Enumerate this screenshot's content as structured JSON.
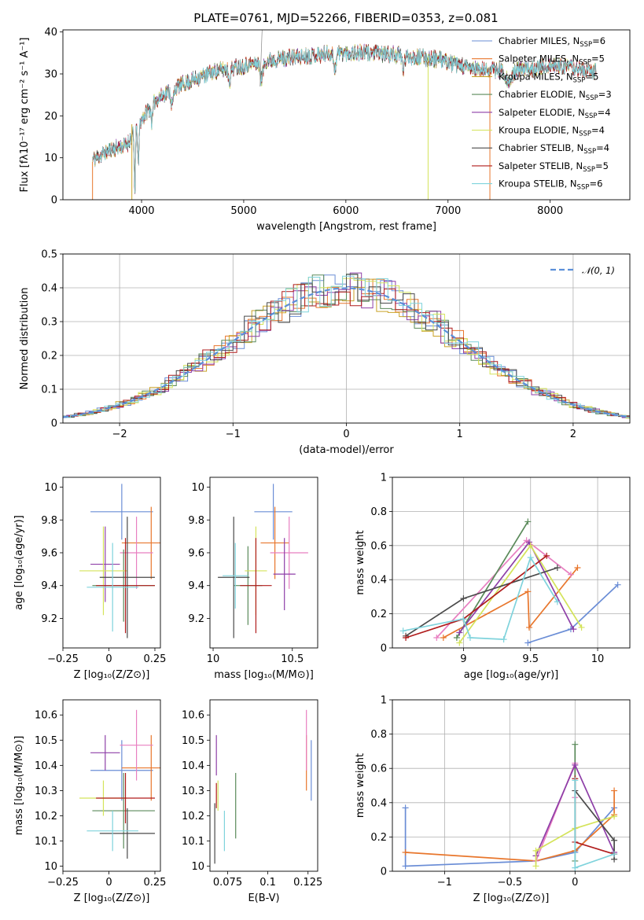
{
  "figure": {
    "title": "PLATE=0761, MJD=52266, FIBERID=0353, z=0.081"
  },
  "chart_data": [
    {
      "id": "spectrum",
      "type": "line",
      "xlabel": "wavelength [Angstrom, rest frame]",
      "ylabel": "Flux [fλ10⁻¹⁷ erg cm⁻² s⁻¹ A⁻¹]",
      "xlim": [
        3230,
        8780
      ],
      "ylim": [
        0,
        40.5
      ],
      "xticks": [
        4000,
        5000,
        6000,
        7000,
        8000
      ],
      "yticks": [
        0,
        10,
        20,
        30,
        40
      ],
      "grid": false,
      "legend_position": "top-right",
      "continuum_knots": {
        "x": [
          3520,
          3700,
          3850,
          3950,
          4050,
          4150,
          4300,
          4500,
          4700,
          4900,
          5100,
          5300,
          5500,
          5700,
          5900,
          6100,
          6300,
          6500,
          6700,
          6900,
          7100,
          7300,
          7500,
          7700,
          7900,
          8100,
          8300,
          8450
        ],
        "y": [
          9.5,
          12,
          13,
          17,
          21,
          24,
          26.5,
          28.5,
          30.5,
          31.5,
          32.5,
          33.5,
          34,
          34.5,
          35,
          35,
          35,
          34.5,
          34,
          33.5,
          32,
          31,
          31,
          31,
          31.5,
          32,
          31,
          30.5
        ]
      },
      "series": [
        {
          "name": "Chabrier MILES, N",
          "sub": "SSP",
          "suffix": "=6",
          "color": "#6a8dd6"
        },
        {
          "name": "Salpeter MILES, N",
          "sub": "SSP",
          "suffix": "=5",
          "color": "#e8762c"
        },
        {
          "name": "Kroupa MILES, N",
          "sub": "SSP",
          "suffix": "=5",
          "color": "#c9a227"
        },
        {
          "name": "Chabrier ELODIE, N",
          "sub": "SSP",
          "suffix": "=3",
          "color": "#5a8a5a"
        },
        {
          "name": "Salpeter ELODIE, N",
          "sub": "SSP",
          "suffix": "=4",
          "color": "#8e3fa8"
        },
        {
          "name": "Kroupa ELODIE, N",
          "sub": "SSP",
          "suffix": "=4",
          "color": "#d4e35a"
        },
        {
          "name": "Chabrier STELIB, N",
          "sub": "SSP",
          "suffix": "=4",
          "color": "#4a4a4a"
        },
        {
          "name": "Salpeter STELIB, N",
          "sub": "SSP",
          "suffix": "=5",
          "color": "#b01c1c"
        },
        {
          "name": "Kroupa STELIB, N",
          "sub": "SSP",
          "suffix": "=6",
          "color": "#7fd3dc"
        }
      ]
    },
    {
      "id": "residuals",
      "type": "histogram",
      "xlabel": "(data-model)/error",
      "ylabel": "Normed distribution",
      "xlim": [
        -2.5,
        2.5
      ],
      "ylim": [
        0,
        0.5
      ],
      "xticks": [
        -2,
        -1,
        0,
        1,
        2
      ],
      "yticks": [
        0.0,
        0.1,
        0.2,
        0.3,
        0.4,
        0.5
      ],
      "grid": true,
      "legend_position": "top-right",
      "reference_curve": {
        "name": "𝒩(0, 1)",
        "mean": 0,
        "sigma": 1,
        "color": "#5b8fd9"
      }
    },
    {
      "id": "age_vs_Z",
      "type": "scatter-errorbar",
      "xlabel": "Z [log₁₀(Z/Z⊙)]",
      "ylabel": "age  [log₁₀(age/yr)]",
      "xlim": [
        -0.25,
        0.28
      ],
      "ylim": [
        9.02,
        10.06
      ],
      "xticks": [
        -0.25,
        0.0,
        0.25
      ],
      "yticks": [
        9.2,
        9.4,
        9.6,
        9.8,
        10.0
      ],
      "points": [
        {
          "x": 0.07,
          "y": 9.85,
          "xerr": 0.17,
          "yerr": 0.17,
          "color": "#6a8dd6"
        },
        {
          "x": 0.23,
          "y": 9.66,
          "xerr": 0.16,
          "yerr": 0.22,
          "color": "#e8762c"
        },
        {
          "x": 0.15,
          "y": 9.6,
          "xerr": 0.09,
          "yerr": 0.22,
          "color": "#e87fc1"
        },
        {
          "x": 0.08,
          "y": 9.4,
          "xerr": 0.17,
          "yerr": 0.22,
          "color": "#5a8a5a"
        },
        {
          "x": -0.02,
          "y": 9.53,
          "xerr": 0.08,
          "yerr": 0.23,
          "color": "#8e3fa8"
        },
        {
          "x": -0.03,
          "y": 9.49,
          "xerr": 0.13,
          "yerr": 0.27,
          "color": "#d4e35a"
        },
        {
          "x": 0.1,
          "y": 9.45,
          "xerr": 0.15,
          "yerr": 0.37,
          "color": "#4a4a4a"
        },
        {
          "x": 0.09,
          "y": 9.4,
          "xerr": 0.16,
          "yerr": 0.29,
          "color": "#b01c1c"
        },
        {
          "x": 0.02,
          "y": 9.39,
          "xerr": 0.14,
          "yerr": 0.27,
          "color": "#7fd3dc"
        }
      ]
    },
    {
      "id": "age_vs_mass",
      "type": "scatter-errorbar",
      "xlabel": "mass [log₁₀(M/M⊙)]",
      "ylabel": "",
      "xlim": [
        9.98,
        10.66
      ],
      "ylim": [
        9.02,
        10.06
      ],
      "xticks": [
        10.0,
        10.5
      ],
      "yticks": [
        9.2,
        9.4,
        9.6,
        9.8,
        10.0
      ],
      "points": [
        {
          "x": 10.38,
          "y": 9.85,
          "xerr": 0.12,
          "yerr": 0.17,
          "color": "#6a8dd6"
        },
        {
          "x": 10.39,
          "y": 9.66,
          "xerr": 0.09,
          "yerr": 0.22,
          "color": "#e8762c"
        },
        {
          "x": 10.48,
          "y": 9.6,
          "xerr": 0.12,
          "yerr": 0.22,
          "color": "#e87fc1"
        },
        {
          "x": 10.22,
          "y": 9.4,
          "xerr": 0.09,
          "yerr": 0.24,
          "color": "#5a8a5a"
        },
        {
          "x": 10.45,
          "y": 9.47,
          "xerr": 0.07,
          "yerr": 0.22,
          "color": "#8e3fa8"
        },
        {
          "x": 10.27,
          "y": 9.49,
          "xerr": 0.07,
          "yerr": 0.27,
          "color": "#d4e35a"
        },
        {
          "x": 10.13,
          "y": 9.45,
          "xerr": 0.1,
          "yerr": 0.37,
          "color": "#4a4a4a"
        },
        {
          "x": 10.27,
          "y": 9.4,
          "xerr": 0.1,
          "yerr": 0.29,
          "color": "#b01c1c"
        },
        {
          "x": 10.14,
          "y": 9.46,
          "xerr": 0.08,
          "yerr": 0.2,
          "color": "#7fd3dc"
        }
      ]
    },
    {
      "id": "weight_vs_age",
      "type": "line",
      "xlabel": "age  [log₁₀(age/yr)]",
      "ylabel": "mass weight",
      "xlim": [
        8.47,
        10.24
      ],
      "ylim": [
        0,
        1.0
      ],
      "xticks": [
        9.0,
        9.5,
        10.0
      ],
      "yticks": [
        0.0,
        0.2,
        0.4,
        0.6,
        0.8,
        1.0
      ],
      "grid": true,
      "series": [
        {
          "color": "#6a8dd6",
          "points": [
            [
              9.48,
              0.03
            ],
            [
              9.8,
              0.11
            ],
            [
              10.15,
              0.37
            ]
          ]
        },
        {
          "color": "#e8762c",
          "points": [
            [
              8.85,
              0.06
            ],
            [
              9.48,
              0.33
            ],
            [
              9.49,
              0.12
            ],
            [
              9.85,
              0.47
            ]
          ]
        },
        {
          "color": "#e87fc1",
          "points": [
            [
              8.8,
              0.06
            ],
            [
              9.47,
              0.63
            ],
            [
              9.8,
              0.43
            ]
          ]
        },
        {
          "color": "#5a8a5a",
          "points": [
            [
              8.95,
              0.06
            ],
            [
              9.48,
              0.74
            ]
          ]
        },
        {
          "color": "#8e3fa8",
          "points": [
            [
              8.97,
              0.09
            ],
            [
              9.49,
              0.62
            ],
            [
              9.82,
              0.11
            ]
          ]
        },
        {
          "color": "#d4e35a",
          "points": [
            [
              8.97,
              0.03
            ],
            [
              9.5,
              0.6
            ],
            [
              9.88,
              0.12
            ]
          ]
        },
        {
          "color": "#4a4a4a",
          "points": [
            [
              8.57,
              0.07
            ],
            [
              9.0,
              0.29
            ],
            [
              9.7,
              0.47
            ]
          ]
        },
        {
          "color": "#b01c1c",
          "points": [
            [
              8.57,
              0.06
            ],
            [
              9.0,
              0.17
            ],
            [
              9.62,
              0.54
            ]
          ]
        },
        {
          "color": "#7fd3dc",
          "points": [
            [
              8.55,
              0.1
            ],
            [
              9.0,
              0.17
            ],
            [
              9.05,
              0.06
            ],
            [
              9.3,
              0.05
            ],
            [
              9.5,
              0.53
            ],
            [
              9.7,
              0.27
            ]
          ]
        }
      ]
    },
    {
      "id": "mass_vs_Z",
      "type": "scatter-errorbar",
      "xlabel": "Z [log₁₀(Z/Z⊙)]",
      "ylabel": "mass [log₁₀(M/M⊙)]",
      "xlim": [
        -0.25,
        0.28
      ],
      "ylim": [
        9.98,
        10.66
      ],
      "xticks": [
        -0.25,
        0.0,
        0.25
      ],
      "yticks": [
        10.0,
        10.1,
        10.2,
        10.3,
        10.4,
        10.5,
        10.6
      ],
      "points": [
        {
          "x": 0.07,
          "y": 10.38,
          "xerr": 0.17,
          "yerr": 0.12,
          "color": "#6a8dd6"
        },
        {
          "x": 0.23,
          "y": 10.39,
          "xerr": 0.16,
          "yerr": 0.13,
          "color": "#e8762c"
        },
        {
          "x": 0.15,
          "y": 10.48,
          "xerr": 0.09,
          "yerr": 0.14,
          "color": "#e87fc1"
        },
        {
          "x": 0.08,
          "y": 10.22,
          "xerr": 0.17,
          "yerr": 0.15,
          "color": "#5a8a5a"
        },
        {
          "x": -0.02,
          "y": 10.45,
          "xerr": 0.08,
          "yerr": 0.07,
          "color": "#8e3fa8"
        },
        {
          "x": -0.03,
          "y": 10.27,
          "xerr": 0.13,
          "yerr": 0.07,
          "color": "#d4e35a"
        },
        {
          "x": 0.1,
          "y": 10.13,
          "xerr": 0.15,
          "yerr": 0.1,
          "color": "#4a4a4a"
        },
        {
          "x": 0.09,
          "y": 10.27,
          "xerr": 0.16,
          "yerr": 0.1,
          "color": "#b01c1c"
        },
        {
          "x": 0.02,
          "y": 10.14,
          "xerr": 0.14,
          "yerr": 0.08,
          "color": "#7fd3dc"
        }
      ]
    },
    {
      "id": "mass_vs_ebv",
      "type": "scatter-errorbar",
      "xlabel": "E(B-V)",
      "ylabel": "",
      "xlim": [
        0.064,
        0.131
      ],
      "ylim": [
        9.98,
        10.66
      ],
      "xticks": [
        0.075,
        0.1,
        0.125
      ],
      "yticks": [
        10.0,
        10.1,
        10.2,
        10.3,
        10.4,
        10.5,
        10.6
      ],
      "points": [
        {
          "x": 0.127,
          "y": 10.38,
          "xerr": 0,
          "yerr": 0.12,
          "color": "#6a8dd6"
        },
        {
          "x": 0.124,
          "y": 10.41,
          "xerr": 0,
          "yerr": 0.11,
          "color": "#e8762c"
        },
        {
          "x": 0.124,
          "y": 10.5,
          "xerr": 0,
          "yerr": 0.12,
          "color": "#e87fc1"
        },
        {
          "x": 0.08,
          "y": 10.24,
          "xerr": 0,
          "yerr": 0.13,
          "color": "#5a8a5a"
        },
        {
          "x": 0.068,
          "y": 10.44,
          "xerr": 0,
          "yerr": 0.08,
          "color": "#8e3fa8"
        },
        {
          "x": 0.069,
          "y": 10.28,
          "xerr": 0,
          "yerr": 0.06,
          "color": "#d4e35a"
        },
        {
          "x": 0.067,
          "y": 10.13,
          "xerr": 0,
          "yerr": 0.12,
          "color": "#4a4a4a"
        },
        {
          "x": 0.068,
          "y": 10.28,
          "xerr": 0,
          "yerr": 0.05,
          "color": "#b01c1c"
        },
        {
          "x": 0.073,
          "y": 10.14,
          "xerr": 0,
          "yerr": 0.08,
          "color": "#7fd3dc"
        }
      ]
    },
    {
      "id": "weight_vs_Z",
      "type": "line",
      "xlabel": "Z [log₁₀(Z/Z⊙)]",
      "ylabel": "mass weight",
      "xlim": [
        -1.4,
        0.42
      ],
      "ylim": [
        0,
        1.0
      ],
      "xticks": [
        -1.0,
        -0.5,
        0.0
      ],
      "yticks": [
        0.0,
        0.2,
        0.4,
        0.6,
        0.8,
        1.0
      ],
      "grid": true,
      "series": [
        {
          "color": "#6a8dd6",
          "points": [
            [
              -1.3,
              0.37
            ],
            [
              -1.3,
              0.03
            ],
            [
              -0.3,
              0.06
            ],
            [
              0.0,
              0.11
            ],
            [
              0.3,
              0.37
            ]
          ]
        },
        {
          "color": "#e8762c",
          "points": [
            [
              -1.3,
              0.11
            ],
            [
              -0.3,
              0.06
            ],
            [
              0.0,
              0.12
            ],
            [
              0.3,
              0.33
            ],
            [
              0.3,
              0.47
            ]
          ]
        },
        {
          "color": "#e87fc1",
          "points": [
            [
              -0.3,
              0.06
            ],
            [
              0.0,
              0.63
            ],
            [
              0.0,
              0.43
            ]
          ]
        },
        {
          "color": "#5a8a5a",
          "points": [
            [
              0.0,
              0.74
            ],
            [
              0.0,
              0.06
            ]
          ]
        },
        {
          "color": "#8e3fa8",
          "points": [
            [
              -0.3,
              0.09
            ],
            [
              0.0,
              0.62
            ],
            [
              0.3,
              0.11
            ]
          ]
        },
        {
          "color": "#d4e35a",
          "points": [
            [
              -0.3,
              0.03
            ],
            [
              -0.3,
              0.12
            ],
            [
              0.0,
              0.25
            ],
            [
              0.3,
              0.32
            ]
          ]
        },
        {
          "color": "#4a4a4a",
          "points": [
            [
              0.0,
              0.47
            ],
            [
              0.3,
              0.18
            ],
            [
              0.3,
              0.07
            ]
          ]
        },
        {
          "color": "#b01c1c",
          "points": [
            [
              0.0,
              0.54
            ],
            [
              0.0,
              0.17
            ],
            [
              0.3,
              0.1
            ]
          ]
        },
        {
          "color": "#7fd3dc",
          "points": [
            [
              0.0,
              0.53
            ],
            [
              0.0,
              0.02
            ],
            [
              0.3,
              0.1
            ]
          ]
        }
      ]
    }
  ]
}
